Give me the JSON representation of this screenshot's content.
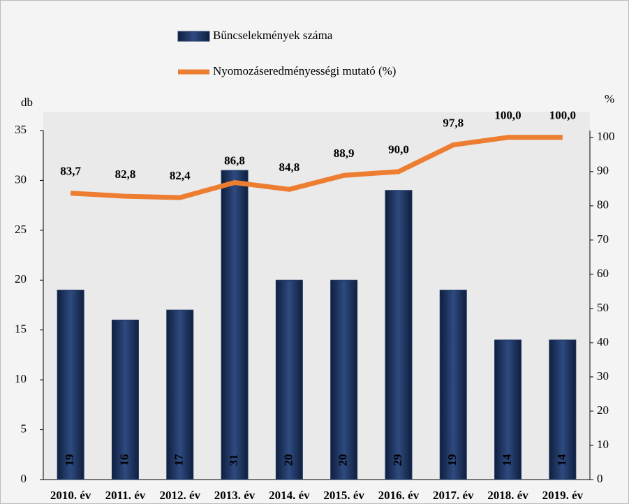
{
  "chart_data": {
    "type": "combo",
    "categories": [
      "2010. év",
      "2011. év",
      "2012. év",
      "2013. év",
      "2014. év",
      "2015. év",
      "2016. év",
      "2017. év",
      "2018. év",
      "2019. év"
    ],
    "series": [
      {
        "name": "Bűncselekmények száma",
        "type": "bar",
        "color": "#1f3864",
        "axis": "y",
        "values": [
          19,
          16,
          17,
          31,
          20,
          20,
          29,
          19,
          14,
          14
        ]
      },
      {
        "name": "Nyomozáseredményességi mutató (%)",
        "type": "line",
        "color": "#ed7d31",
        "axis": "y2",
        "values": [
          83.7,
          82.8,
          82.4,
          86.8,
          84.8,
          88.9,
          90.0,
          97.8,
          100.0,
          100.0
        ],
        "value_labels": [
          "83,7",
          "82,8",
          "82,4",
          "86,8",
          "84,8",
          "88,9",
          "90,0",
          "97,8",
          "100,0",
          "100,0"
        ]
      }
    ],
    "y_label": "db",
    "y2_label": "%",
    "ylim": [
      0,
      35
    ],
    "yticks": [
      0,
      5,
      10,
      15,
      20,
      25,
      30,
      35
    ],
    "y2lim": [
      0,
      102
    ],
    "y2ticks": [
      0,
      10,
      20,
      30,
      40,
      50,
      60,
      70,
      80,
      90,
      100
    ]
  }
}
